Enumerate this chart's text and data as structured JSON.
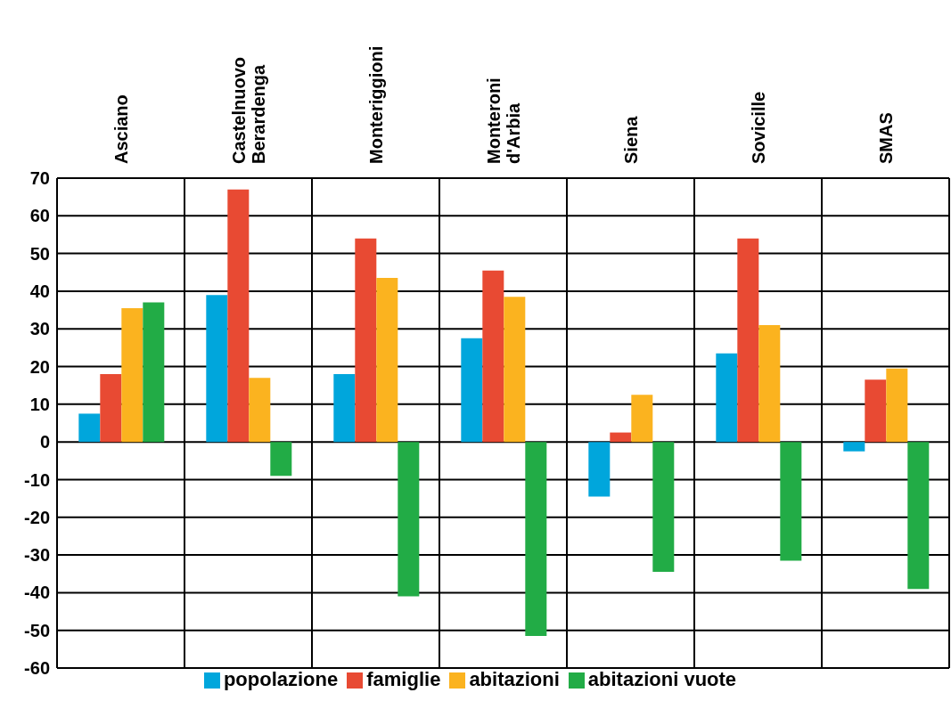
{
  "chart_data": {
    "type": "bar",
    "categories": [
      "Asciano",
      "Castelnuovo Berardenga",
      "Monteriggioni",
      "Monteroni d'Arbia",
      "Siena",
      "Sovicille",
      "SMAS"
    ],
    "series": [
      {
        "name": "popolazione",
        "color": "#00a6dc",
        "values": [
          7.5,
          39,
          18,
          27.5,
          -14.5,
          23.5,
          -2.5
        ]
      },
      {
        "name": "famiglie",
        "color": "#e84a33",
        "values": [
          18,
          67,
          54,
          45.5,
          2.5,
          54,
          16.5
        ]
      },
      {
        "name": "abitazioni",
        "color": "#fbb31f",
        "values": [
          35.5,
          17,
          43.5,
          38.5,
          12.5,
          31,
          19.5
        ]
      },
      {
        "name": "abitazioni vuote",
        "color": "#22ac46",
        "values": [
          37,
          -9,
          -41,
          -51.5,
          -34.5,
          -31.5,
          -39
        ]
      }
    ],
    "ylim": [
      -60,
      70
    ],
    "yticks": [
      -60,
      -50,
      -40,
      -30,
      -20,
      -10,
      0,
      10,
      20,
      30,
      40,
      50,
      60,
      70
    ],
    "grid": true,
    "legend": "bottom"
  }
}
